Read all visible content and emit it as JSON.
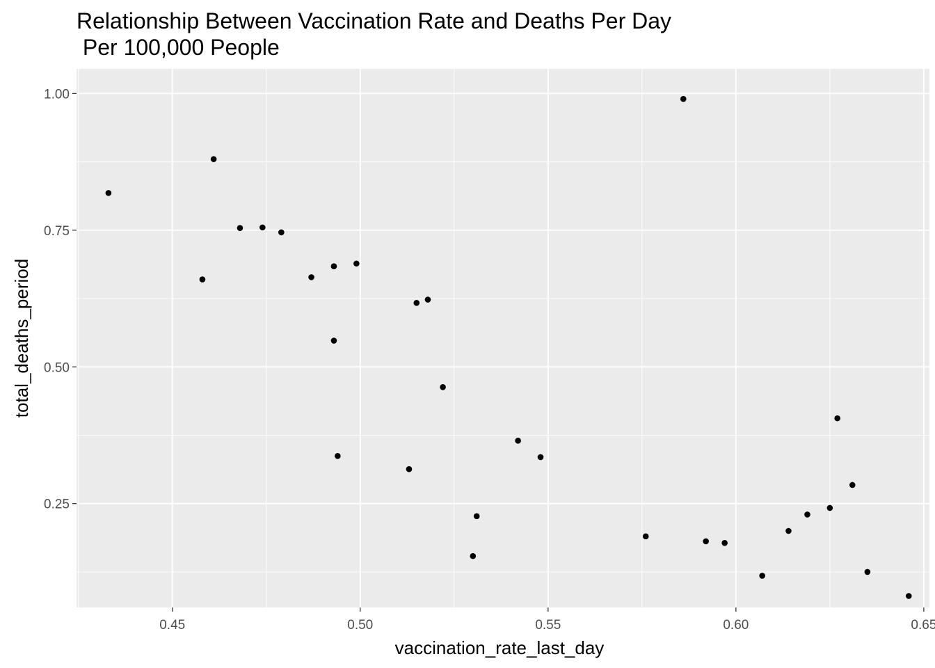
{
  "chart_data": {
    "type": "scatter",
    "title_line1": "Relationship Between Vaccination Rate and Deaths Per Day",
    "title_line2": " Per 100,000 People",
    "xlabel": "vaccination_rate_last_day",
    "ylabel": "total_deaths_period",
    "xlim": [
      0.4245,
      0.6515
    ],
    "ylim": [
      0.06,
      1.045
    ],
    "x_ticks": [
      0.45,
      0.5,
      0.55,
      0.6,
      0.65
    ],
    "x_tick_labels": [
      "0.45",
      "0.50",
      "0.55",
      "0.60",
      "0.65"
    ],
    "y_ticks": [
      0.25,
      0.5,
      0.75,
      1.0
    ],
    "y_tick_labels": [
      "0.25",
      "0.50",
      "0.75",
      "1.00"
    ],
    "grid": true,
    "colors": {
      "panel_bg": "#ebebeb",
      "grid": "#ffffff",
      "point": "#000000",
      "tick_text": "#4d4d4d",
      "tick_mark": "#333333"
    },
    "points": [
      {
        "x": 0.433,
        "y": 0.818
      },
      {
        "x": 0.458,
        "y": 0.66
      },
      {
        "x": 0.461,
        "y": 0.88
      },
      {
        "x": 0.468,
        "y": 0.754
      },
      {
        "x": 0.474,
        "y": 0.755
      },
      {
        "x": 0.479,
        "y": 0.746
      },
      {
        "x": 0.487,
        "y": 0.664
      },
      {
        "x": 0.493,
        "y": 0.684
      },
      {
        "x": 0.493,
        "y": 0.548
      },
      {
        "x": 0.494,
        "y": 0.337
      },
      {
        "x": 0.499,
        "y": 0.689
      },
      {
        "x": 0.513,
        "y": 0.313
      },
      {
        "x": 0.515,
        "y": 0.617
      },
      {
        "x": 0.518,
        "y": 0.623
      },
      {
        "x": 0.522,
        "y": 0.463
      },
      {
        "x": 0.53,
        "y": 0.154
      },
      {
        "x": 0.531,
        "y": 0.227
      },
      {
        "x": 0.542,
        "y": 0.365
      },
      {
        "x": 0.548,
        "y": 0.335
      },
      {
        "x": 0.576,
        "y": 0.19
      },
      {
        "x": 0.586,
        "y": 0.99
      },
      {
        "x": 0.592,
        "y": 0.181
      },
      {
        "x": 0.597,
        "y": 0.178
      },
      {
        "x": 0.607,
        "y": 0.118
      },
      {
        "x": 0.614,
        "y": 0.2
      },
      {
        "x": 0.619,
        "y": 0.23
      },
      {
        "x": 0.625,
        "y": 0.242
      },
      {
        "x": 0.627,
        "y": 0.406
      },
      {
        "x": 0.631,
        "y": 0.284
      },
      {
        "x": 0.635,
        "y": 0.125
      },
      {
        "x": 0.646,
        "y": 0.081
      }
    ]
  }
}
